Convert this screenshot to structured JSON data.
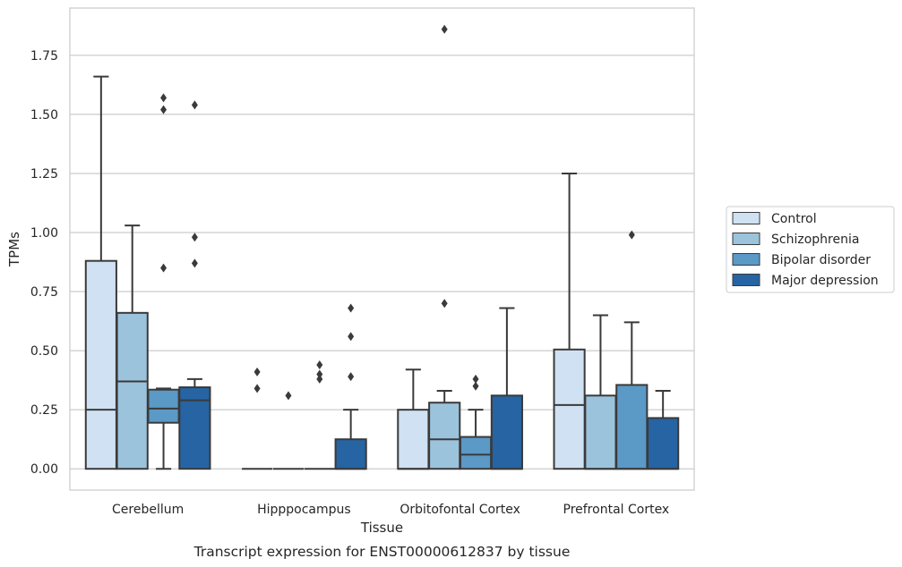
{
  "chart_data": {
    "type": "box",
    "xlabel": "Tissue",
    "ylabel": "TPMs",
    "caption": "Transcript expression for ENST00000612837 by tissue",
    "categories": [
      "Cerebellum",
      "Hipppocampus",
      "Orbitofontal Cortex",
      "Prefrontal Cortex"
    ],
    "ylim": [
      -0.09,
      1.95
    ],
    "yticks": [
      0.0,
      0.25,
      0.5,
      0.75,
      1.0,
      1.25,
      1.5,
      1.75
    ],
    "ytick_labels": [
      "0.00",
      "0.25",
      "0.50",
      "0.75",
      "1.00",
      "1.25",
      "1.50",
      "1.75"
    ],
    "grid": "horizontal",
    "legend_position": "right",
    "series": [
      {
        "name": "Control",
        "color": "#cfe1f2",
        "boxes": [
          {
            "whislo": 0.0,
            "q1": 0.0,
            "med": 0.25,
            "q3": 0.88,
            "whishi": 1.66,
            "fliers": []
          },
          {
            "whislo": 0.0,
            "q1": 0.0,
            "med": 0.0,
            "q3": 0.0,
            "whishi": 0.0,
            "fliers": [
              0.34,
              0.41
            ]
          },
          {
            "whislo": 0.0,
            "q1": 0.0,
            "med": 0.0,
            "q3": 0.25,
            "whishi": 0.42,
            "fliers": []
          },
          {
            "whislo": 0.0,
            "q1": 0.0,
            "med": 0.27,
            "q3": 0.505,
            "whishi": 1.25,
            "fliers": []
          }
        ]
      },
      {
        "name": "Schizophrenia",
        "color": "#9cc3dc",
        "boxes": [
          {
            "whislo": 0.0,
            "q1": 0.0,
            "med": 0.37,
            "q3": 0.66,
            "whishi": 1.03,
            "fliers": []
          },
          {
            "whislo": 0.0,
            "q1": 0.0,
            "med": 0.0,
            "q3": 0.0,
            "whishi": 0.0,
            "fliers": [
              0.31
            ]
          },
          {
            "whislo": 0.0,
            "q1": 0.0,
            "med": 0.125,
            "q3": 0.28,
            "whishi": 0.33,
            "fliers": [
              0.7,
              1.86
            ]
          },
          {
            "whislo": 0.0,
            "q1": 0.0,
            "med": 0.0,
            "q3": 0.31,
            "whishi": 0.65,
            "fliers": []
          }
        ]
      },
      {
        "name": "Bipolar disorder",
        "color": "#5b99c6",
        "boxes": [
          {
            "whislo": 0.0,
            "q1": 0.195,
            "med": 0.255,
            "q3": 0.335,
            "whishi": 0.34,
            "fliers": [
              0.85,
              1.52,
              1.57
            ]
          },
          {
            "whislo": 0.0,
            "q1": 0.0,
            "med": 0.0,
            "q3": 0.0,
            "whishi": 0.0,
            "fliers": [
              0.38,
              0.4,
              0.44
            ]
          },
          {
            "whislo": 0.0,
            "q1": 0.0,
            "med": 0.06,
            "q3": 0.135,
            "whishi": 0.25,
            "fliers": [
              0.35,
              0.38
            ]
          },
          {
            "whislo": 0.0,
            "q1": 0.0,
            "med": 0.0,
            "q3": 0.355,
            "whishi": 0.62,
            "fliers": [
              0.99
            ]
          }
        ]
      },
      {
        "name": "Major depression",
        "color": "#2664a3",
        "boxes": [
          {
            "whislo": 0.0,
            "q1": 0.0,
            "med": 0.29,
            "q3": 0.345,
            "whishi": 0.38,
            "fliers": [
              0.87,
              0.98,
              1.54
            ]
          },
          {
            "whislo": 0.0,
            "q1": 0.0,
            "med": 0.0,
            "q3": 0.125,
            "whishi": 0.25,
            "fliers": [
              0.39,
              0.56,
              0.68
            ]
          },
          {
            "whislo": 0.0,
            "q1": 0.0,
            "med": 0.0,
            "q3": 0.31,
            "whishi": 0.68,
            "fliers": []
          },
          {
            "whislo": 0.0,
            "q1": 0.0,
            "med": 0.0,
            "q3": 0.215,
            "whishi": 0.33,
            "fliers": []
          }
        ]
      }
    ]
  }
}
